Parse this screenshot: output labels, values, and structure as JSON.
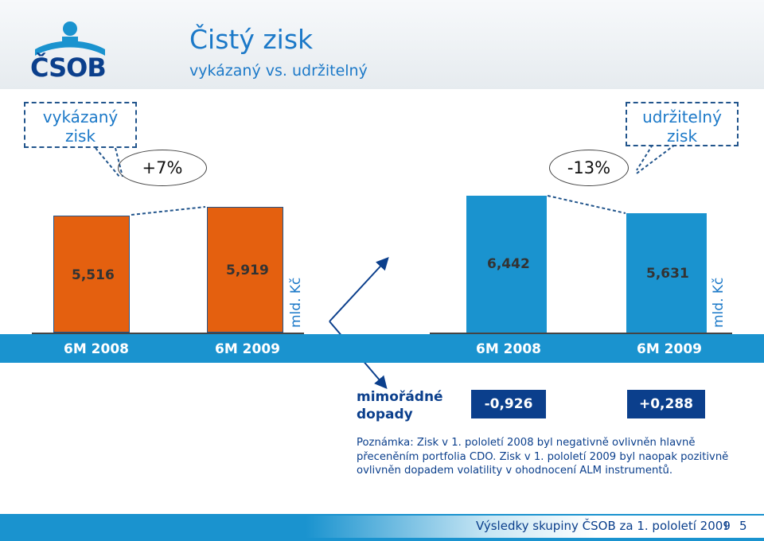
{
  "header": {
    "logo_text": "ČSOB",
    "title": "Čistý zisk",
    "subtitle": "vykázaný vs. udržitelný"
  },
  "callouts": {
    "reported": "vykázaný\nzisk",
    "sustainable": "udržitelný\nzisk",
    "reported_growth": "+7%",
    "sustainable_growth": "-13%"
  },
  "chart_data": [
    {
      "type": "bar",
      "categories": [
        "6M 2008",
        "6M 2009"
      ],
      "values": [
        5.516,
        5.919
      ],
      "value_labels": [
        "5,516",
        "5,919"
      ],
      "unit": "mld. Kč",
      "callout": "vykázaný\nzisk",
      "change": "+7%",
      "color": "#e4600f"
    },
    {
      "type": "bar",
      "categories": [
        "6M 2008",
        "6M 2009"
      ],
      "values": [
        6.442,
        5.631
      ],
      "value_labels": [
        "6,442",
        "5,631"
      ],
      "unit": "mld. Kč",
      "callout": "udržitelný\nzisk",
      "change": "-13%",
      "color": "#1a93cf"
    }
  ],
  "impacts": {
    "label": "mimořádné\ndopady",
    "values": [
      "-0,926",
      "+0,288"
    ]
  },
  "note": "Poznámka: Zisk v 1. pololetí 2008 byl negativně ovlivněn hlavně přeceněním portfolia CDO. Zisk v 1. pololetí 2009 byl naopak pozitivně ovlivněn dopadem volatility v ohodnocení ALM instrumentů.",
  "footer": {
    "text": "Výsledky skupiny ČSOB za 1. pololetí 2009",
    "separator": "I",
    "page": "5"
  },
  "colors": {
    "accent_blue": "#1a93cf",
    "dark_blue": "#0b3f8c",
    "orange": "#e4600f"
  }
}
